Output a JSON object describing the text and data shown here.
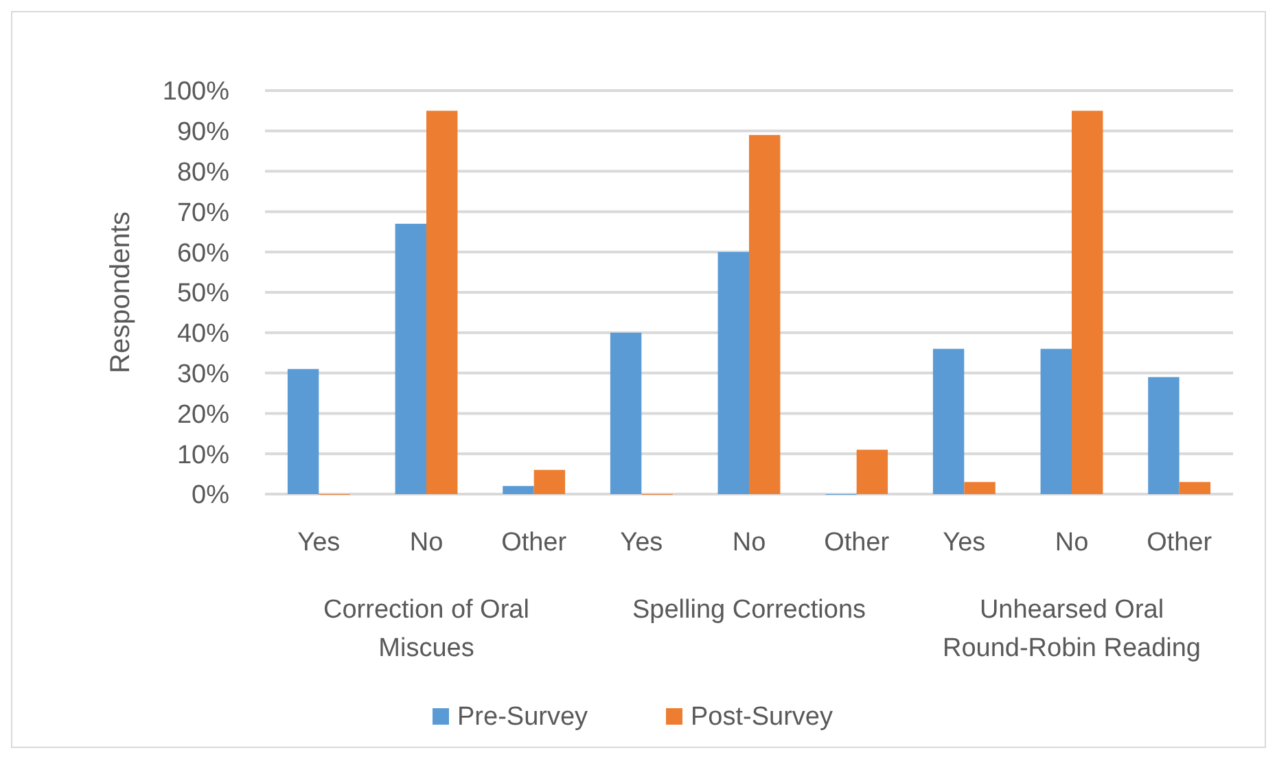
{
  "chart_data": {
    "type": "bar",
    "ylabel": "Respondents",
    "categories": [
      "Yes",
      "No",
      "Other",
      "Yes",
      "No",
      "Other",
      "Yes",
      "No",
      "Other"
    ],
    "annotations": [
      "Correction of Oral Miscues",
      "Spelling Corrections",
      "Unhearsed Oral Round-Robin Reading"
    ],
    "series": [
      {
        "name": "Pre-Survey",
        "color": "#5b9bd5",
        "values": [
          31,
          67,
          2,
          40,
          60,
          0,
          36,
          36,
          29
        ]
      },
      {
        "name": "Post-Survey",
        "color": "#ed7d31",
        "values": [
          0,
          95,
          6,
          0,
          89,
          11,
          3,
          95,
          3
        ]
      }
    ],
    "ylim": [
      0,
      100
    ],
    "yticks": [
      {
        "value": 0,
        "label": "0%"
      },
      {
        "value": 10,
        "label": "10%"
      },
      {
        "value": 20,
        "label": "20%"
      },
      {
        "value": 30,
        "label": "30%"
      },
      {
        "value": 40,
        "label": "40%"
      },
      {
        "value": 50,
        "label": "50%"
      },
      {
        "value": 60,
        "label": "60%"
      },
      {
        "value": 70,
        "label": "70%"
      },
      {
        "value": 80,
        "label": "80%"
      },
      {
        "value": 90,
        "label": "90%"
      },
      {
        "value": 100,
        "label": "100%"
      }
    ],
    "grid": "y",
    "legend": "bottom"
  }
}
